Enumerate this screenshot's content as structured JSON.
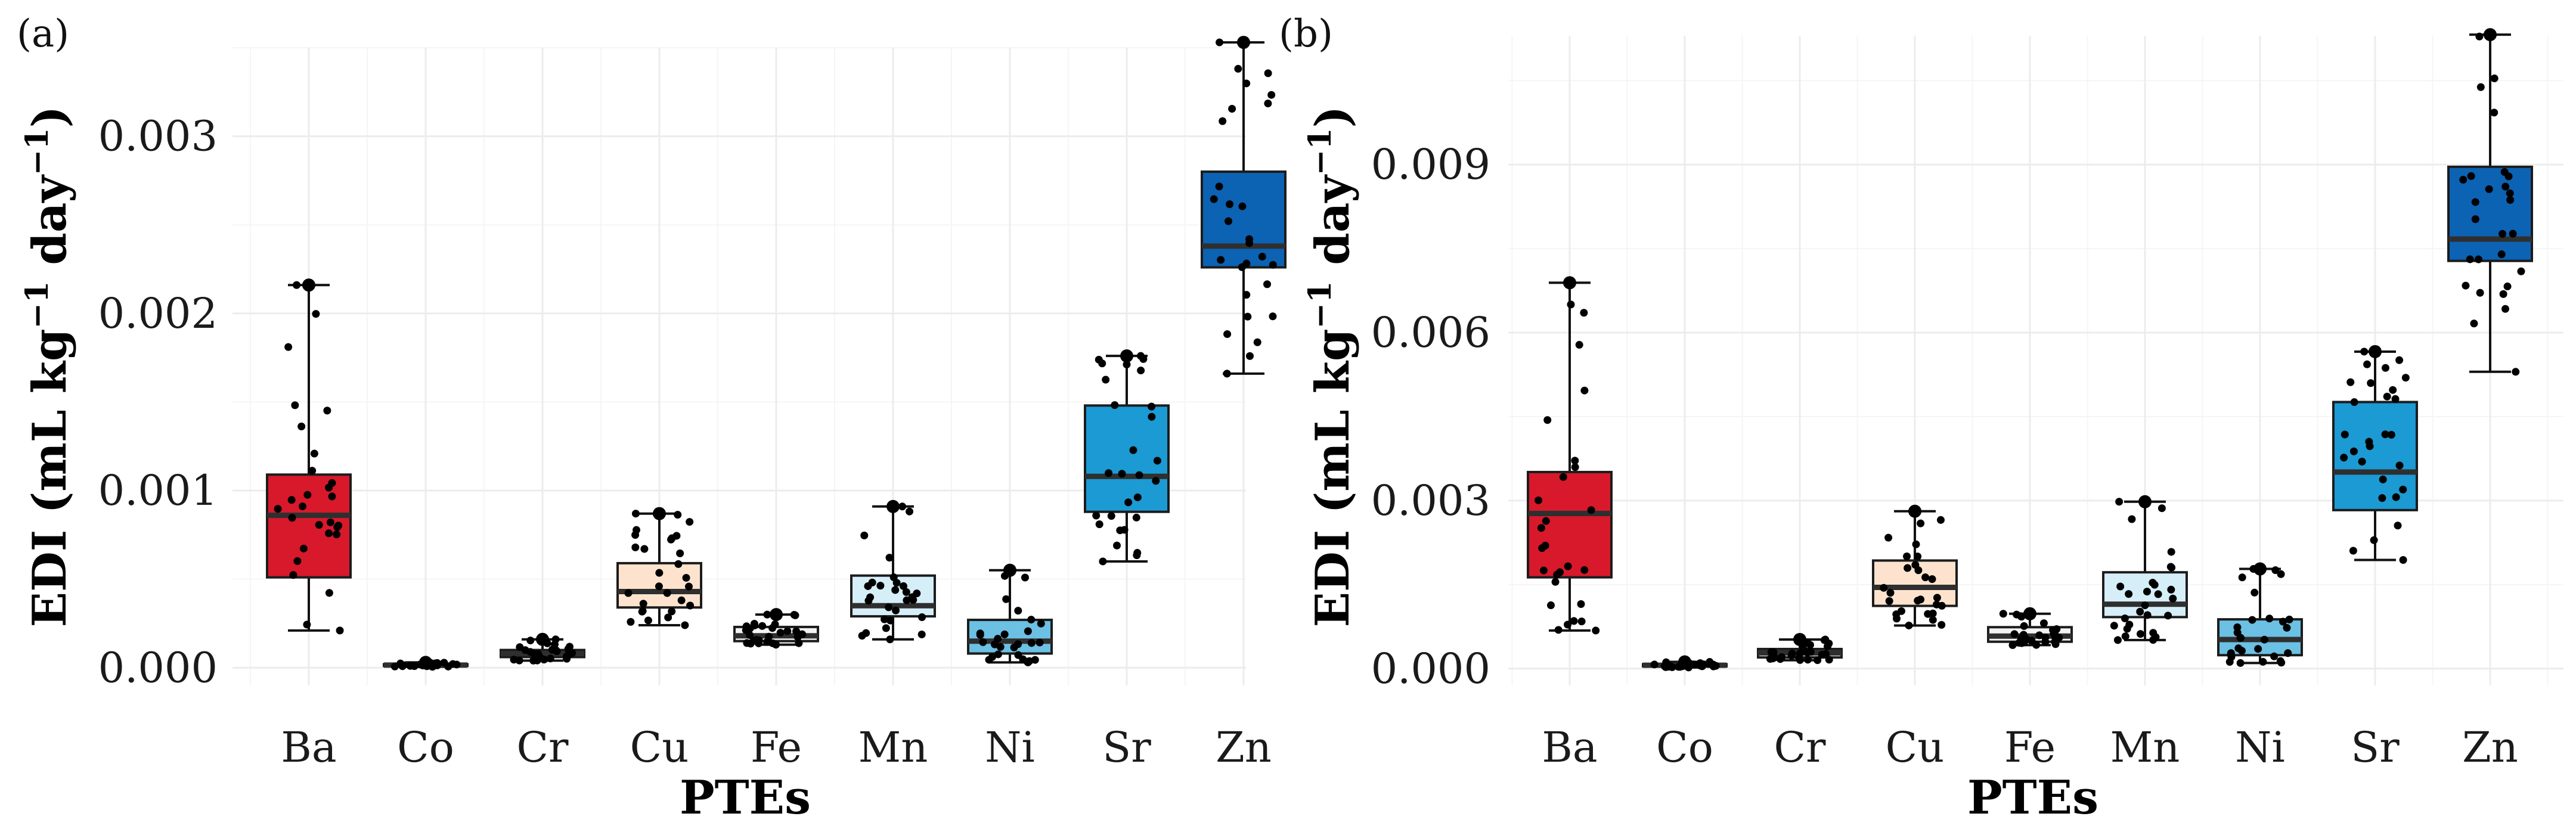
{
  "figure": {
    "x_title": "PTEs",
    "y_title_main": "EDI (mL kg",
    "y_title_sup1": "−1",
    "y_title_mid": " day",
    "y_title_sup2": "−1",
    "y_title_end": ")",
    "categories": [
      "Ba",
      "Co",
      "Cr",
      "Cu",
      "Fe",
      "Mn",
      "Ni",
      "Sr",
      "Zn"
    ],
    "colors": {
      "Ba": "#d7192b",
      "Co": "#fce3d6",
      "Cr": "#f7f2ee",
      "Cu": "#fde3cd",
      "Fe": "#f2f2f2",
      "Mn": "#d6eef8",
      "Ni": "#6bc0e3",
      "Sr": "#1b9ad4",
      "Zn": "#0c62b3"
    }
  },
  "chart_data": [
    {
      "type": "box",
      "panel": "(a)",
      "categories": [
        "Ba",
        "Co",
        "Cr",
        "Cu",
        "Fe",
        "Mn",
        "Ni",
        "Sr",
        "Zn"
      ],
      "ylim": [
        -0.0001,
        0.0035
      ],
      "yticks": [
        "0.000",
        "0.001",
        "0.002",
        "0.003"
      ],
      "ytick_values": [
        0,
        0.001,
        0.002,
        0.003
      ],
      "xlabel": "PTEs",
      "ylabel": "EDI (mL kg−1 day−1)",
      "boxes": [
        {
          "name": "Ba",
          "min": 0.00021,
          "q1": 0.00051,
          "median": 0.00086,
          "q3": 0.00109,
          "max": 0.00216
        },
        {
          "name": "Co",
          "min": 5e-06,
          "q1": 1e-05,
          "median": 1.5e-05,
          "q3": 2e-05,
          "max": 3e-05
        },
        {
          "name": "Cr",
          "min": 4e-05,
          "q1": 6e-05,
          "median": 8e-05,
          "q3": 0.0001,
          "max": 0.00016
        },
        {
          "name": "Cu",
          "min": 0.00024,
          "q1": 0.00034,
          "median": 0.00043,
          "q3": 0.00059,
          "max": 0.00087
        },
        {
          "name": "Fe",
          "min": 0.00013,
          "q1": 0.00015,
          "median": 0.00018,
          "q3": 0.00023,
          "max": 0.0003
        },
        {
          "name": "Mn",
          "min": 0.00016,
          "q1": 0.00029,
          "median": 0.00035,
          "q3": 0.00052,
          "max": 0.00091
        },
        {
          "name": "Ni",
          "min": 3e-05,
          "q1": 8e-05,
          "median": 0.00015,
          "q3": 0.00027,
          "max": 0.00055
        },
        {
          "name": "Sr",
          "min": 0.0006,
          "q1": 0.00088,
          "median": 0.00108,
          "q3": 0.00148,
          "max": 0.00176
        },
        {
          "name": "Zn",
          "min": 0.00166,
          "q1": 0.00226,
          "median": 0.00238,
          "q3": 0.0028,
          "max": 0.00353
        }
      ]
    },
    {
      "type": "box",
      "panel": "(b)",
      "categories": [
        "Ba",
        "Co",
        "Cr",
        "Cu",
        "Fe",
        "Mn",
        "Ni",
        "Sr",
        "Zn"
      ],
      "ylim": [
        -0.0003,
        0.0113
      ],
      "yticks": [
        "0.000",
        "0.003",
        "0.006",
        "0.009"
      ],
      "ytick_values": [
        0,
        0.003,
        0.006,
        0.009
      ],
      "xlabel": "PTEs",
      "ylabel": "EDI (mL kg−1 day−1)",
      "boxes": [
        {
          "name": "Ba",
          "min": 0.00068,
          "q1": 0.00163,
          "median": 0.00277,
          "q3": 0.00351,
          "max": 0.00689
        },
        {
          "name": "Co",
          "min": 2e-05,
          "q1": 4e-05,
          "median": 6e-05,
          "q3": 8e-05,
          "max": 0.00012
        },
        {
          "name": "Cr",
          "min": 0.00015,
          "q1": 0.0002,
          "median": 0.00028,
          "q3": 0.00035,
          "max": 0.00052
        },
        {
          "name": "Cu",
          "min": 0.00077,
          "q1": 0.00112,
          "median": 0.00145,
          "q3": 0.00193,
          "max": 0.00281
        },
        {
          "name": "Fe",
          "min": 0.00042,
          "q1": 0.00048,
          "median": 0.00058,
          "q3": 0.00074,
          "max": 0.00098
        },
        {
          "name": "Mn",
          "min": 0.00051,
          "q1": 0.00092,
          "median": 0.00115,
          "q3": 0.00172,
          "max": 0.00298
        },
        {
          "name": "Ni",
          "min": 0.0001,
          "q1": 0.00024,
          "median": 0.00052,
          "q3": 0.00088,
          "max": 0.00178
        },
        {
          "name": "Sr",
          "min": 0.00194,
          "q1": 0.00283,
          "median": 0.00351,
          "q3": 0.00476,
          "max": 0.00566
        },
        {
          "name": "Zn",
          "min": 0.0053,
          "q1": 0.00728,
          "median": 0.00767,
          "q3": 0.00896,
          "max": 0.01132
        }
      ]
    }
  ]
}
